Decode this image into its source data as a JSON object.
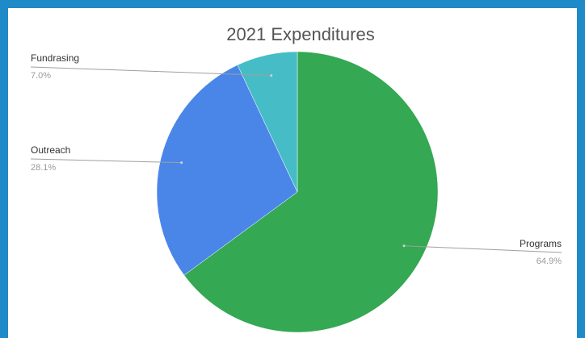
{
  "chart_data": {
    "type": "pie",
    "title": "2021 Expenditures",
    "slices": [
      {
        "label": "Programs",
        "value": 64.9,
        "value_label": "64.9%",
        "color": "#34a853"
      },
      {
        "label": "Outreach",
        "value": 28.1,
        "value_label": "28.1%",
        "color": "#4a86e8"
      },
      {
        "label": "Fundrasing",
        "value": 7.0,
        "value_label": "7.0%",
        "color": "#46bdc6"
      }
    ],
    "start": "top",
    "direction": "clockwise",
    "legend": "callout-labels"
  }
}
